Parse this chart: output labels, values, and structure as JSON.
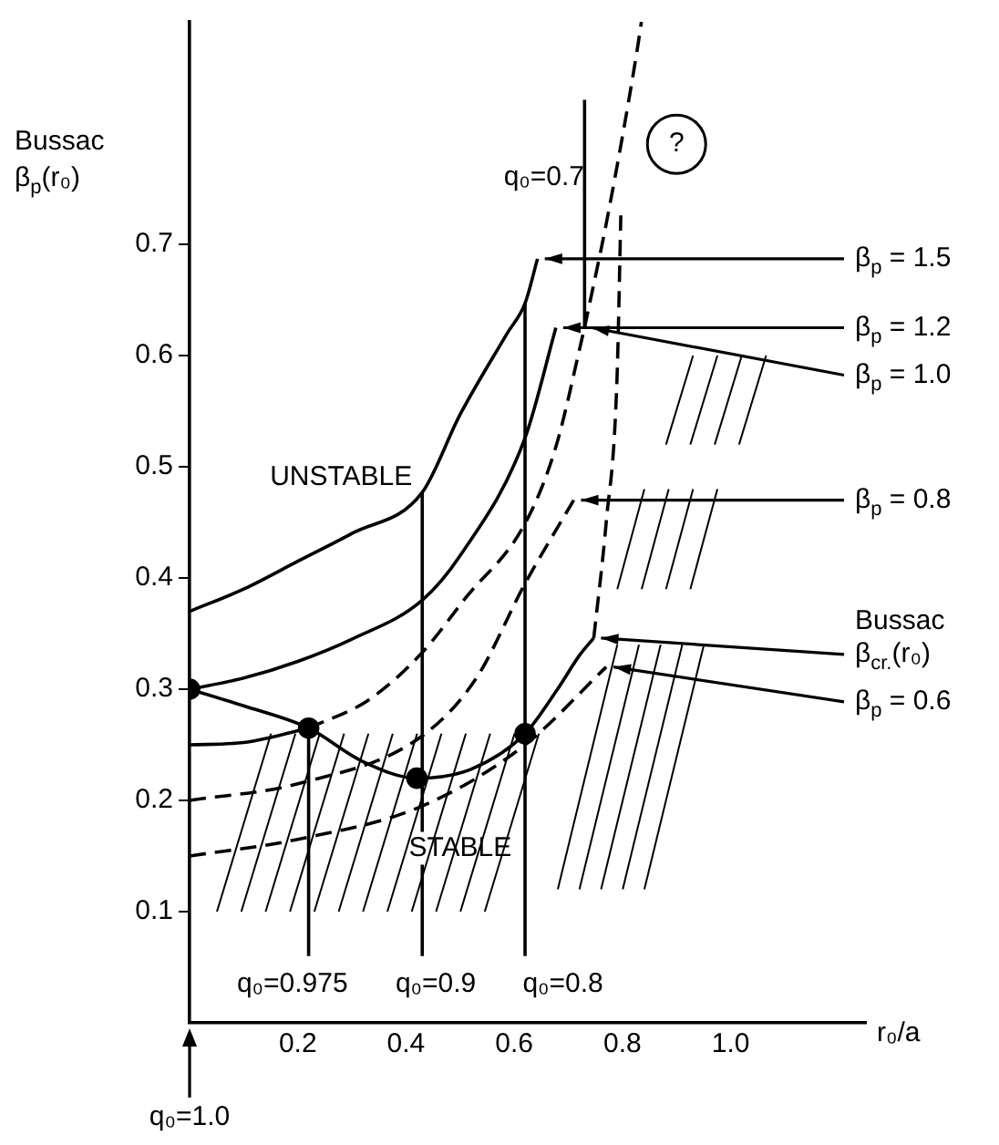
{
  "chart_data": {
    "type": "line",
    "xlabel": "r₀/a",
    "ylabel": "Bussac β$_{p}$(r₀)",
    "xlim": [
      0,
      1.25
    ],
    "xticks": [
      0.2,
      0.4,
      0.6,
      0.8,
      {
        "value": 1,
        "label": "1.0"
      }
    ],
    "ylim": [
      0,
      0.9
    ],
    "yticks": [
      0.1,
      0.2,
      0.3,
      0.4,
      0.5,
      0.6,
      0.7
    ],
    "grid": false,
    "legend": false,
    "marker": "none",
    "line_style": "solid",
    "series": [
      {
        "name": "β$_{p}$ = 1.5",
        "color": "#000000",
        "x": [
          0,
          0.1,
          0.2,
          0.3,
          0.43,
          0.5,
          0.587,
          0.62,
          0.643
        ],
        "values": [
          0.37,
          0.39,
          0.415,
          0.44,
          0.477,
          0.547,
          0.62,
          0.647,
          0.687
        ]
      },
      {
        "name": "β$_{p}$ = 1.2",
        "color": "#000000",
        "x": [
          0,
          0.1,
          0.2,
          0.3,
          0.43,
          0.5,
          0.62,
          0.677
        ],
        "values": [
          0.3,
          0.31,
          0.325,
          0.345,
          0.38,
          0.42,
          0.526,
          0.625
        ]
      },
      {
        "name": "β$_{p}$ = 1.0",
        "color": "#000000",
        "line_style": "dashed",
        "x": [
          0.22,
          0.33,
          0.43,
          0.51,
          0.62,
          0.677,
          0.73
        ],
        "values": [
          0.265,
          0.29,
          0.333,
          0.382,
          0.449,
          0.518,
          0.625
        ]
      },
      {
        "color": "#000000",
        "line_style": "dashed",
        "x": [
          0.73,
          0.773,
          0.827,
          0.835
        ],
        "values": [
          0.625,
          0.726,
          0.874,
          0.9
        ]
      },
      {
        "name": "β$_{p}$ = 0.8",
        "color": "#000000",
        "line_style": "dashed",
        "x": [
          0,
          0.2,
          0.43,
          0.53,
          0.62,
          0.71
        ],
        "values": [
          0.2,
          0.215,
          0.258,
          0.31,
          0.395,
          0.47
        ]
      },
      {
        "name": "Bussac β$_{cr.}$(r₀)",
        "color": "#000000",
        "x": [
          0,
          0.1,
          0.22,
          0.32,
          0.42,
          0.52,
          0.62,
          0.68,
          0.72,
          0.747
        ],
        "values": [
          0.3,
          0.285,
          0.265,
          0.235,
          0.22,
          0.228,
          0.26,
          0.3,
          0.33,
          0.346
        ]
      },
      {
        "color": "#000000",
        "line_style": "dashed",
        "x": [
          0.747,
          0.77,
          0.79,
          0.797
        ],
        "values": [
          0.346,
          0.45,
          0.58,
          0.726
        ]
      },
      {
        "name": "β$_{p}$ = 0.6",
        "color": "#000000",
        "line_style": "dashed",
        "x": [
          0,
          0.2,
          0.43,
          0.62,
          0.77
        ],
        "values": [
          0.15,
          0.165,
          0.195,
          0.25,
          0.32
        ]
      },
      {
        "color": "#000000",
        "x": [
          0,
          0.1,
          0.22
        ],
        "values": [
          0.25,
          0.252,
          0.265
        ]
      },
      {
        "color": "#000000",
        "x": [
          0.22,
          0.22
        ],
        "values": [
          0.06,
          0.265
        ]
      },
      {
        "color": "#000000",
        "x": [
          0.43,
          0.43
        ],
        "values": [
          0.06,
          0.477
        ]
      },
      {
        "color": "#000000",
        "x": [
          0.62,
          0.62
        ],
        "values": [
          0.06,
          0.647
        ]
      },
      {
        "color": "#000000",
        "x": [
          0.73,
          0.73
        ],
        "values": [
          0.83,
          0.625
        ]
      },
      {
        "type": "scatter",
        "marker": "circle",
        "color": "#000000",
        "x": [
          0,
          0.22,
          0.42,
          0.62
        ],
        "values": [
          0.3,
          0.265,
          0.22,
          0.26
        ]
      }
    ],
    "annotations": [
      "UNSTABLE",
      "STABLE",
      "?",
      "q₀=0.7",
      "q₀=0.975",
      "q₀=0.9",
      "q₀=0.8",
      "q₀=1.0"
    ]
  }
}
